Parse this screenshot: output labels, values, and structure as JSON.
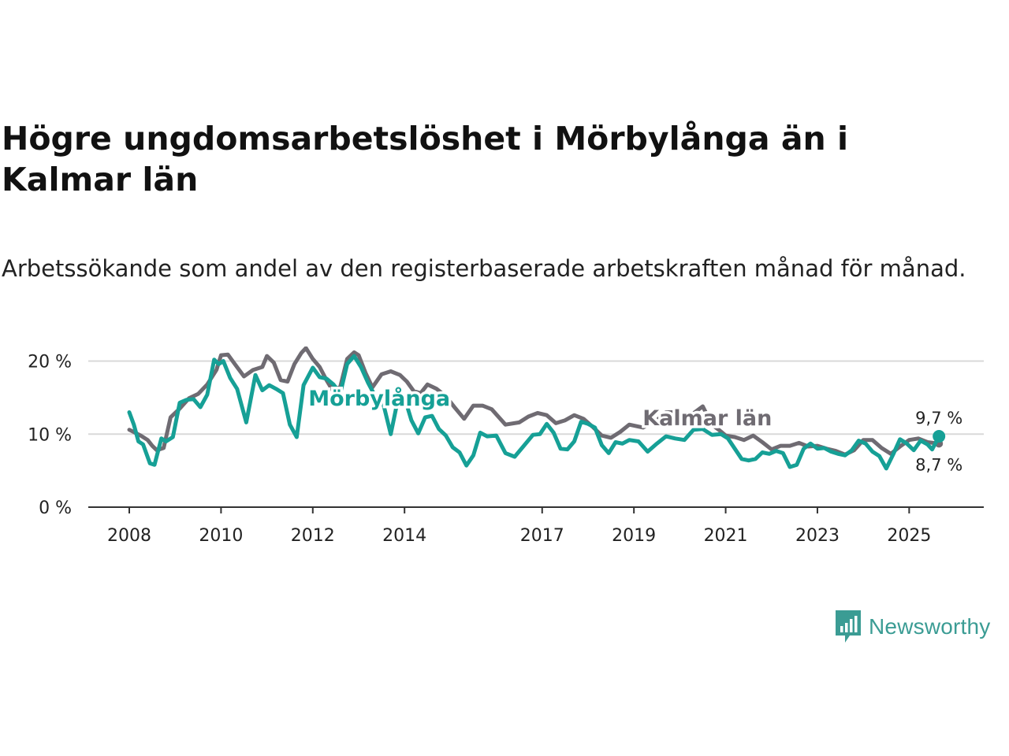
{
  "title": "Högre ungdomsarbetslöshet i Mörbylånga än i Kalmar län",
  "subtitle": "Arbetssökande som andel av den registerbaserade arbetskraften månad för månad.",
  "brand": "Newsworthy",
  "colors": {
    "morbylanga": "#16a096",
    "kalmar": "#6f6b72",
    "grid": "#d9d9d9",
    "axis": "#333333"
  },
  "chart_data": {
    "type": "line",
    "ylim": [
      0,
      22
    ],
    "yticks": [
      0,
      10,
      20
    ],
    "ytick_labels": [
      "0 %",
      "10 %",
      "20 %"
    ],
    "xlim": [
      2008,
      2025.75
    ],
    "xticks": [
      2008,
      2010,
      2012,
      2014,
      2017,
      2019,
      2021,
      2023,
      2025
    ],
    "xtick_labels": [
      "2008",
      "2010",
      "2012",
      "2014",
      "2017",
      "2019",
      "2021",
      "2023",
      "2025"
    ],
    "grid": true,
    "series": [
      {
        "name": "Kalmar län",
        "end_label": "8,7 %",
        "x": [
          2008.0,
          2008.25,
          2008.4,
          2008.5,
          2008.6,
          2008.75,
          2008.9,
          2009.1,
          2009.3,
          2009.5,
          2009.7,
          2009.9,
          2010.0,
          2010.15,
          2010.3,
          2010.5,
          2010.7,
          2010.9,
          2011.0,
          2011.15,
          2011.3,
          2011.45,
          2011.6,
          2011.75,
          2011.85,
          2012.0,
          2012.15,
          2012.3,
          2012.45,
          2012.6,
          2012.75,
          2012.9,
          2013.0,
          2013.15,
          2013.3,
          2013.5,
          2013.7,
          2013.9,
          2014.05,
          2014.2,
          2014.35,
          2014.5,
          2014.7,
          2014.9,
          2015.1,
          2015.3,
          2015.5,
          2015.7,
          2015.9,
          2016.2,
          2016.5,
          2016.7,
          2016.9,
          2017.1,
          2017.3,
          2017.5,
          2017.7,
          2017.9,
          2018.1,
          2018.3,
          2018.5,
          2018.7,
          2018.9,
          2019.2,
          2019.5,
          2019.7,
          2019.9,
          2020.2,
          2020.5,
          2020.7,
          2020.85,
          2021.0,
          2021.2,
          2021.4,
          2021.6,
          2021.8,
          2022.0,
          2022.2,
          2022.4,
          2022.6,
          2022.8,
          2023.0,
          2023.2,
          2023.4,
          2023.6,
          2023.8,
          2024.0,
          2024.2,
          2024.4,
          2024.6,
          2024.8,
          2025.0,
          2025.2,
          2025.4,
          2025.65
        ],
        "values": [
          10.6,
          9.8,
          9.2,
          8.4,
          7.8,
          8.1,
          12.3,
          13.5,
          14.9,
          15.5,
          16.8,
          18.8,
          20.8,
          20.9,
          19.6,
          17.9,
          18.8,
          19.2,
          20.7,
          19.8,
          17.4,
          17.2,
          19.6,
          21.1,
          21.8,
          20.3,
          19.2,
          17.4,
          15.8,
          16.5,
          20.3,
          21.2,
          20.8,
          18.4,
          16.4,
          18.2,
          18.6,
          18.1,
          17.2,
          15.9,
          15.6,
          16.8,
          16.2,
          15.2,
          13.6,
          12.1,
          13.9,
          13.9,
          13.4,
          11.3,
          11.6,
          12.4,
          12.9,
          12.6,
          11.5,
          11.9,
          12.6,
          12.1,
          11.0,
          9.8,
          9.5,
          10.3,
          11.3,
          10.9,
          11.9,
          13.0,
          13.0,
          12.4,
          13.8,
          11.3,
          10.6,
          9.8,
          9.6,
          9.2,
          9.8,
          8.9,
          7.9,
          8.4,
          8.4,
          8.8,
          8.3,
          8.4,
          8.0,
          7.7,
          7.2,
          7.8,
          9.2,
          9.2,
          8.1,
          7.3,
          8.3,
          9.2,
          9.4,
          8.9,
          8.7
        ]
      },
      {
        "name": "Mörbylånga",
        "end_label": "9,7 %",
        "x": [
          2008.0,
          2008.1,
          2008.2,
          2008.3,
          2008.45,
          2008.55,
          2008.7,
          2008.8,
          2008.95,
          2009.1,
          2009.25,
          2009.4,
          2009.55,
          2009.7,
          2009.85,
          2009.95,
          2010.05,
          2010.2,
          2010.35,
          2010.55,
          2010.75,
          2010.9,
          2011.05,
          2011.2,
          2011.35,
          2011.5,
          2011.65,
          2011.8,
          2012.0,
          2012.15,
          2012.3,
          2012.45,
          2012.6,
          2012.75,
          2012.9,
          2013.05,
          2013.2,
          2013.35,
          2013.5,
          2013.7,
          2013.85,
          2014.0,
          2014.15,
          2014.3,
          2014.45,
          2014.6,
          2014.75,
          2014.9,
          2015.05,
          2015.2,
          2015.35,
          2015.5,
          2015.65,
          2015.8,
          2016.0,
          2016.2,
          2016.4,
          2016.6,
          2016.8,
          2016.95,
          2017.1,
          2017.25,
          2017.4,
          2017.55,
          2017.7,
          2017.85,
          2018.0,
          2018.15,
          2018.3,
          2018.45,
          2018.6,
          2018.75,
          2018.9,
          2019.1,
          2019.3,
          2019.5,
          2019.7,
          2019.9,
          2020.1,
          2020.3,
          2020.5,
          2020.7,
          2020.9,
          2021.05,
          2021.2,
          2021.35,
          2021.5,
          2021.65,
          2021.8,
          2021.95,
          2022.1,
          2022.25,
          2022.4,
          2022.55,
          2022.7,
          2022.85,
          2023.0,
          2023.15,
          2023.3,
          2023.45,
          2023.6,
          2023.75,
          2023.9,
          2024.05,
          2024.2,
          2024.35,
          2024.5,
          2024.65,
          2024.8,
          2024.95,
          2025.1,
          2025.25,
          2025.4,
          2025.5,
          2025.65
        ],
        "values": [
          13.0,
          11.3,
          9.0,
          8.6,
          6.0,
          5.8,
          9.4,
          9.0,
          9.6,
          14.3,
          14.7,
          14.8,
          13.7,
          15.4,
          20.2,
          19.6,
          20.0,
          17.7,
          16.2,
          11.6,
          18.1,
          16.0,
          16.7,
          16.2,
          15.6,
          11.3,
          9.6,
          16.7,
          19.1,
          17.8,
          17.6,
          16.8,
          15.6,
          19.6,
          20.7,
          19.2,
          17.1,
          15.3,
          15.1,
          10.0,
          14.6,
          15.0,
          11.9,
          10.1,
          12.3,
          12.5,
          10.7,
          9.8,
          8.2,
          7.5,
          5.7,
          7.1,
          10.2,
          9.7,
          9.8,
          7.4,
          6.9,
          8.4,
          9.9,
          10.0,
          11.4,
          10.2,
          8.0,
          7.9,
          9.0,
          11.7,
          11.4,
          10.9,
          8.5,
          7.4,
          8.9,
          8.7,
          9.2,
          9.0,
          7.6,
          8.7,
          9.7,
          9.4,
          9.2,
          10.6,
          10.7,
          9.9,
          10.0,
          9.4,
          8.0,
          6.6,
          6.4,
          6.6,
          7.5,
          7.3,
          7.7,
          7.4,
          5.5,
          5.8,
          8.0,
          8.7,
          8.0,
          8.1,
          7.6,
          7.3,
          7.1,
          7.8,
          9.1,
          8.7,
          7.6,
          7.0,
          5.3,
          7.2,
          9.3,
          8.7,
          7.8,
          9.1,
          8.6,
          7.9,
          9.7
        ]
      }
    ],
    "annotations": [
      {
        "text": "Mörbylånga",
        "x": 2013.45,
        "y": 13.9,
        "series": "Mörbylånga"
      },
      {
        "text": "Kalmar län",
        "x": 2020.6,
        "y": 11.2,
        "series": "Kalmar län"
      }
    ]
  }
}
